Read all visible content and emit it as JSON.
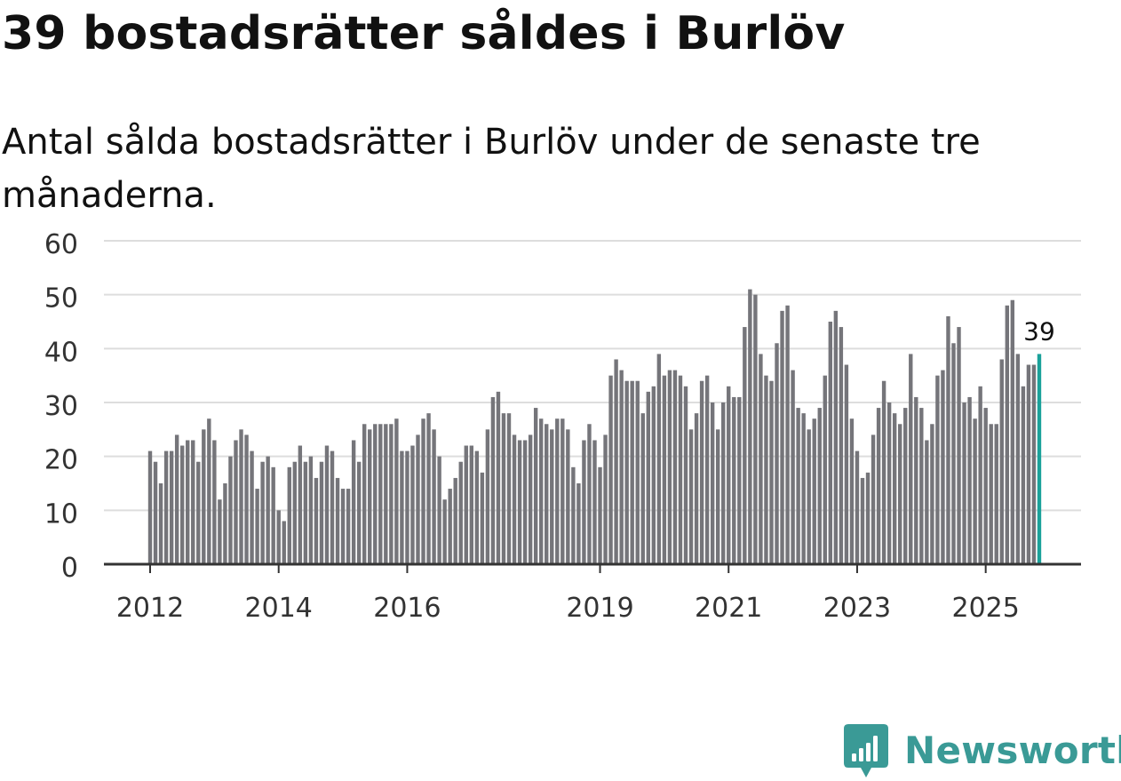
{
  "title": "39 bostadsrätter såldes i Burlöv",
  "subtitle": "Antal sålda bostadsrätter i Burlöv under de senaste tre månaderna.",
  "brand": {
    "name": "Newsworthy",
    "logo_icon": "newsworthy-logo-icon"
  },
  "colors": {
    "bar": "#75757a",
    "highlight": "#1aa19a",
    "grid": "#dddddd",
    "axis": "#333333",
    "brand": "#3a9a96",
    "text": "#111111",
    "tick_text": "#333333"
  },
  "chart_data": {
    "type": "bar",
    "title": "39 bostadsrätter såldes i Burlöv",
    "xlabel": "",
    "ylabel": "",
    "ylim": [
      0,
      60
    ],
    "yticks": [
      0,
      10,
      20,
      30,
      40,
      50,
      60
    ],
    "grid": true,
    "xticks": [
      {
        "label": "2012",
        "index": 0
      },
      {
        "label": "2014",
        "index": 24
      },
      {
        "label": "2016",
        "index": 48
      },
      {
        "label": "2019",
        "index": 84
      },
      {
        "label": "2021",
        "index": 108
      },
      {
        "label": "2023",
        "index": 132
      },
      {
        "label": "2025",
        "index": 156
      }
    ],
    "x_unit": "month (estimated)",
    "values": [
      21,
      19,
      15,
      21,
      21,
      24,
      22,
      23,
      23,
      19,
      25,
      27,
      23,
      12,
      15,
      20,
      23,
      25,
      24,
      21,
      14,
      19,
      20,
      18,
      10,
      8,
      18,
      19,
      22,
      19,
      20,
      16,
      19,
      22,
      21,
      16,
      14,
      14,
      23,
      19,
      26,
      25,
      26,
      26,
      26,
      26,
      27,
      21,
      21,
      22,
      24,
      27,
      28,
      25,
      20,
      12,
      14,
      16,
      19,
      22,
      22,
      21,
      17,
      25,
      31,
      32,
      28,
      28,
      24,
      23,
      23,
      24,
      29,
      27,
      26,
      25,
      27,
      27,
      25,
      18,
      15,
      23,
      26,
      23,
      18,
      24,
      35,
      38,
      36,
      34,
      34,
      34,
      28,
      32,
      33,
      39,
      35,
      36,
      36,
      35,
      33,
      25,
      28,
      34,
      35,
      30,
      25,
      30,
      33,
      31,
      31,
      44,
      51,
      50,
      39,
      35,
      34,
      41,
      47,
      48,
      36,
      29,
      28,
      25,
      27,
      29,
      35,
      45,
      47,
      44,
      37,
      27,
      21,
      16,
      17,
      24,
      29,
      34,
      30,
      28,
      26,
      29,
      39,
      31,
      29,
      23,
      26,
      35,
      36,
      46,
      41,
      44,
      30,
      31,
      27,
      33,
      29,
      26,
      26,
      38,
      48,
      49,
      39,
      33,
      37,
      37,
      39
    ],
    "highlight_index": 166,
    "highlight_label": "39"
  }
}
